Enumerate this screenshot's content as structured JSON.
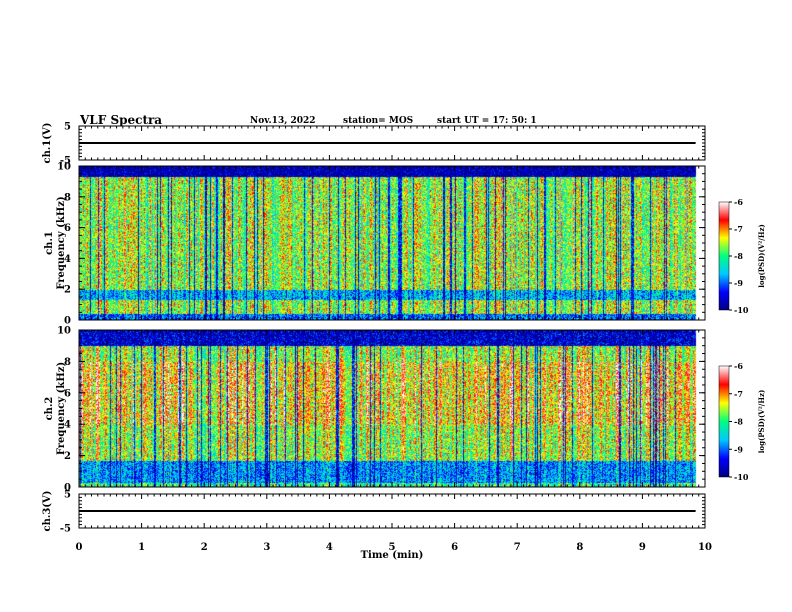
{
  "header": {
    "title": "VLF Spectra",
    "date": "Nov.13, 2022",
    "station": "station= MOS",
    "start": "start  UT  =  17: 50: 1"
  },
  "colors": {
    "colormap": [
      "#000080",
      "#0000ff",
      "#00c8ff",
      "#00ff80",
      "#ffff00",
      "#ff0000",
      "#ffffff"
    ]
  },
  "chart_data": [
    {
      "type": "line",
      "panel": "ch1-waveform",
      "ylabel": "ch.1(V)",
      "ylim": [
        -5,
        5
      ],
      "yticks": [
        "5",
        "-5"
      ],
      "xlim": [
        0,
        10
      ],
      "series": [
        {
          "x": [
            0,
            9.85
          ],
          "values": [
            0,
            0
          ]
        }
      ]
    },
    {
      "type": "heatmap",
      "panel": "ch1-spectrogram",
      "ylabel": "ch.1\nFrequency (kHz)",
      "ylim": [
        0,
        10
      ],
      "yticks": [
        "0",
        "2",
        "4",
        "6",
        "8",
        "10"
      ],
      "xlim": [
        0,
        10
      ],
      "data_end": 9.85,
      "colorbar": {
        "label": "log(PSD)(V²/Hz)",
        "range": [
          -10,
          -6
        ],
        "ticks": [
          "-6",
          "-7",
          "-8",
          "-9",
          "-10"
        ]
      }
    },
    {
      "type": "heatmap",
      "panel": "ch2-spectrogram",
      "ylabel": "ch.2\nFrequency (kHz)",
      "ylim": [
        0,
        10
      ],
      "yticks": [
        "0",
        "2",
        "4",
        "6",
        "8",
        "10"
      ],
      "xlim": [
        0,
        10
      ],
      "data_end": 9.85,
      "colorbar": {
        "label": "log(PSD)(V²/Hz)",
        "range": [
          -10,
          -6
        ],
        "ticks": [
          "-6",
          "-7",
          "-8",
          "-9",
          "-10"
        ]
      }
    },
    {
      "type": "line",
      "panel": "ch3-waveform",
      "ylabel": "ch.3(V)",
      "ylim": [
        -5,
        5
      ],
      "yticks": [
        "5",
        "-5"
      ],
      "xlim": [
        0,
        10
      ],
      "xlabel": "Time  (min)",
      "xticks": [
        "0",
        "1",
        "2",
        "3",
        "4",
        "5",
        "6",
        "7",
        "8",
        "9",
        "10"
      ],
      "series": [
        {
          "x": [
            0,
            9.85
          ],
          "values": [
            0,
            0
          ]
        }
      ]
    }
  ]
}
